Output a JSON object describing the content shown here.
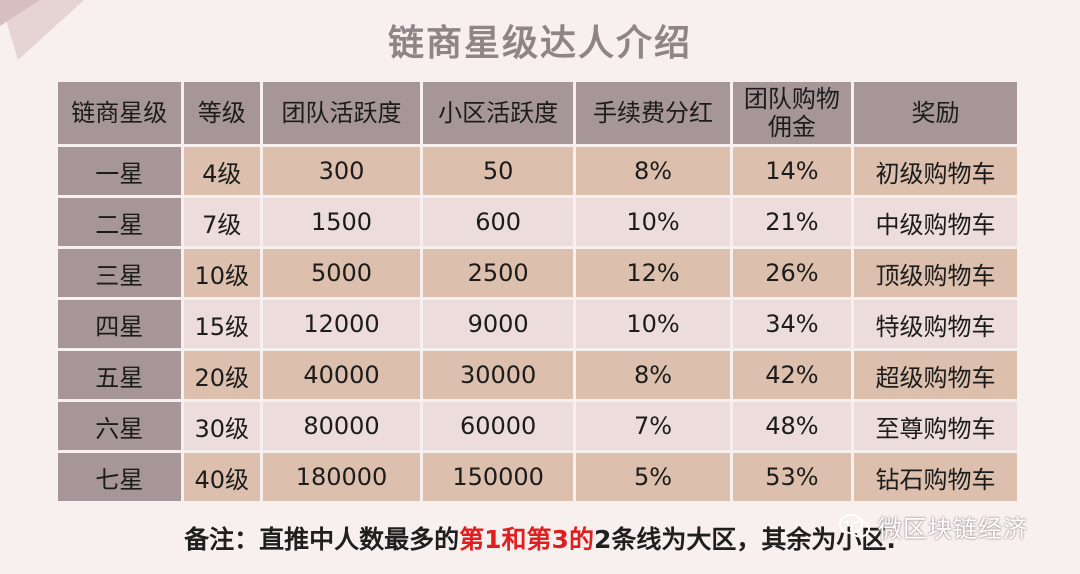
{
  "title": "链商星级达人介绍",
  "headers": [
    "链商星级",
    "等级",
    "团队活跃度",
    "小区活跃度",
    "手续费分红",
    "团队购物\n佣金",
    "奖励"
  ],
  "rows": [
    [
      "一星",
      "4级",
      "300",
      "50",
      "8%",
      "14%",
      "初级购物车"
    ],
    [
      "二星",
      "7级",
      "1500",
      "600",
      "10%",
      "21%",
      "中级购物车"
    ],
    [
      "三星",
      "10级",
      "5000",
      "2500",
      "12%",
      "26%",
      "顶级购物车"
    ],
    [
      "四星",
      "15级",
      "12000",
      "9000",
      "10%",
      "34%",
      "特级购物车"
    ],
    [
      "五星",
      "20级",
      "40000",
      "30000",
      "8%",
      "42%",
      "超级购物车"
    ],
    [
      "六星",
      "30级",
      "80000",
      "60000",
      "7%",
      "48%",
      "至尊购物车"
    ],
    [
      "七星",
      "40级",
      "180000",
      "150000",
      "5%",
      "53%",
      "钻石购物车"
    ]
  ],
  "note": {
    "prefix": "备注：直推中人数最多的",
    "highlight": "第1和第3的",
    "suffix": "2条线为大区，其余为小区."
  },
  "watermark": {
    "icon": "wechat-icon",
    "text": "微区块链经济"
  },
  "colors": {
    "header_bg": "#a6969a",
    "row_odd": "#dcc0ad",
    "row_even": "#ecdcdb",
    "highlight": "#e02020"
  }
}
